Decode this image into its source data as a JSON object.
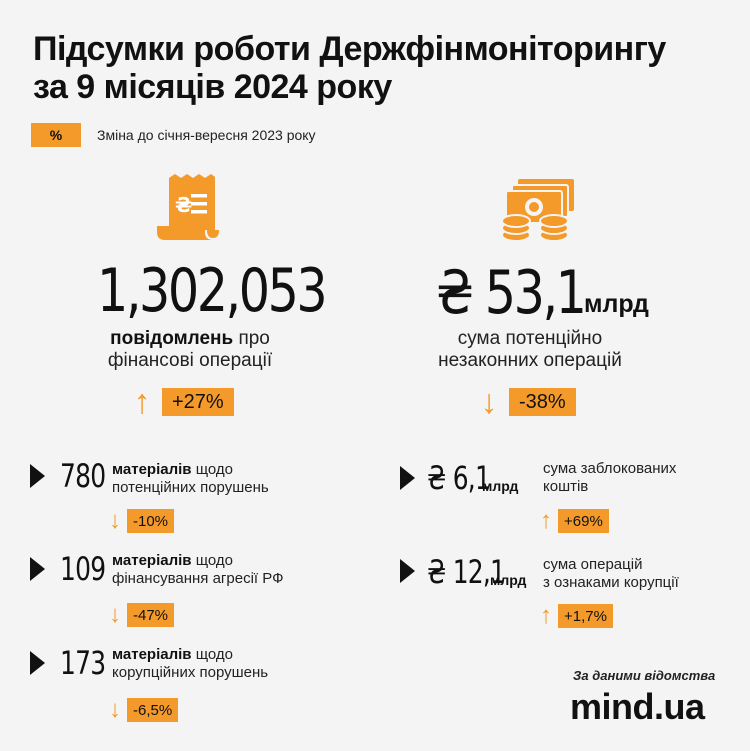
{
  "title_line1": "Підсумки роботи Держфінмоніторингу",
  "title_line2": "за 9 місяців 2024 року",
  "legend": {
    "swatch": "%",
    "text": "Зміна до січня-вересня 2023 року"
  },
  "colors": {
    "accent": "#f39a2b",
    "text": "#111111",
    "background": "#f4f4f4"
  },
  "left_main": {
    "icon": "receipt-hryvnia-icon",
    "number": "1,302,053",
    "sub_bold": "повідомлень",
    "sub_rest": " про",
    "sub_line2": "фінансові операції",
    "change_direction": "up",
    "change": "+27%"
  },
  "right_main": {
    "icon": "money-coins-icon",
    "number": "₴ 53,1",
    "unit": "млрд",
    "sub_line1": "сума потенційно",
    "sub_line2": "незаконних операцій",
    "change_direction": "down",
    "change": "-38%"
  },
  "left_items": [
    {
      "number": "780",
      "bold": "матеріалів",
      "rest": " щодо",
      "line2": "потенційних порушень",
      "change_direction": "down",
      "change": "-10%"
    },
    {
      "number": "109",
      "bold": "матеріалів",
      "rest": " щодо",
      "line2": "фінансування агресії РФ",
      "change_direction": "down",
      "change": "-47%"
    },
    {
      "number": "173",
      "bold": "матеріалів",
      "rest": " щодо",
      "line2": "корупційних порушень",
      "change_direction": "down",
      "change": "-6,5%"
    }
  ],
  "right_items": [
    {
      "number": "₴ 6,1",
      "unit": "млрд",
      "line1": "сума заблокованих",
      "line2": "коштів",
      "change_direction": "up",
      "change": "+69%"
    },
    {
      "number": "₴ 12,1",
      "unit": "млрд",
      "line1": "сума операцій",
      "line2": "з ознаками корупції",
      "change_direction": "up",
      "change": "+1,7%"
    }
  ],
  "arrows": {
    "up": "↑",
    "down": "↓"
  },
  "source": "За даними відомства",
  "brand": "mind.ua"
}
